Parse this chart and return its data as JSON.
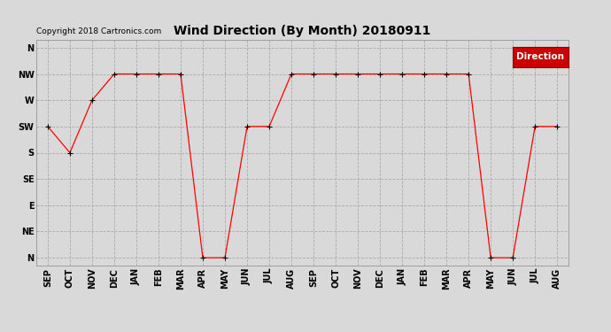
{
  "title": "Wind Direction (By Month) 20180911",
  "copyright_text": "Copyright 2018 Cartronics.com",
  "legend_label": "Direction",
  "legend_bg": "#ff0000",
  "legend_text_color": "#ffffff",
  "months": [
    "SEP",
    "OCT",
    "NOV",
    "DEC",
    "JAN",
    "FEB",
    "MAR",
    "APR",
    "MAY",
    "JUN",
    "JUL",
    "AUG",
    "SEP",
    "OCT",
    "NOV",
    "DEC",
    "JAN",
    "FEB",
    "MAR",
    "APR",
    "MAY",
    "JUN",
    "JUL",
    "AUG"
  ],
  "line_color": "#ff0000",
  "bg_color": "#dddddd",
  "grid_color": "#bbbbbb",
  "title_fontsize": 10,
  "label_fontsize": 7,
  "y_values": [
    5,
    4,
    6,
    7,
    7,
    7,
    7,
    0,
    0,
    5,
    5,
    7,
    7,
    7,
    7,
    7,
    7,
    7,
    7,
    7,
    0,
    0,
    5,
    5
  ]
}
